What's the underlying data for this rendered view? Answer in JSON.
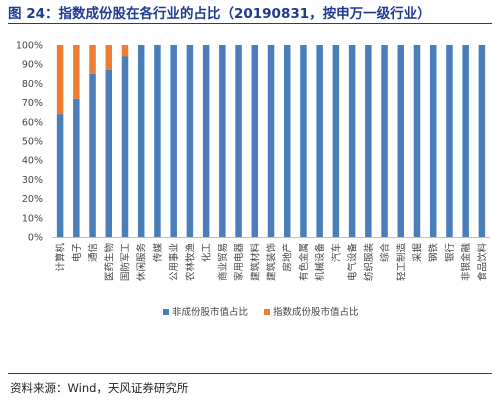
{
  "title": "图 24：指数成份股在各行业的占比（20190831，按申万一级行业）",
  "source": "资料来源：Wind，天风证券研究所",
  "chart_data": {
    "type": "bar",
    "stacked": true,
    "categories": [
      "计算机",
      "电子",
      "通信",
      "医药生物",
      "国防军工",
      "休闲服务",
      "传媒",
      "公用事业",
      "农林牧渔",
      "化工",
      "商业贸易",
      "家用电器",
      "建筑材料",
      "建筑装饰",
      "房地产",
      "有色金属",
      "机械设备",
      "汽车",
      "电气设备",
      "纺织服装",
      "综合",
      "轻工制造",
      "采掘",
      "钢铁",
      "银行",
      "非银金融",
      "食品饮料"
    ],
    "series": [
      {
        "name": "非成份股市值占比",
        "color": "#4a7ebb",
        "values": [
          64,
          72,
          85,
          87,
          94,
          100,
          100,
          100,
          100,
          100,
          100,
          100,
          100,
          100,
          100,
          100,
          100,
          100,
          100,
          100,
          100,
          100,
          100,
          100,
          100,
          100,
          100
        ]
      },
      {
        "name": "指数成份股市值占比",
        "color": "#ed7d31",
        "values": [
          36,
          28,
          15,
          13,
          6,
          0,
          0,
          0,
          0,
          0,
          0,
          0,
          0,
          0,
          0,
          0,
          0,
          0,
          0,
          0,
          0,
          0,
          0,
          0,
          0,
          0,
          0
        ]
      }
    ],
    "yticks": [
      "0%",
      "10%",
      "20%",
      "30%",
      "40%",
      "50%",
      "60%",
      "70%",
      "80%",
      "90%",
      "100%"
    ],
    "ylim": [
      0,
      100
    ],
    "legend_position": "bottom",
    "grid": false
  }
}
